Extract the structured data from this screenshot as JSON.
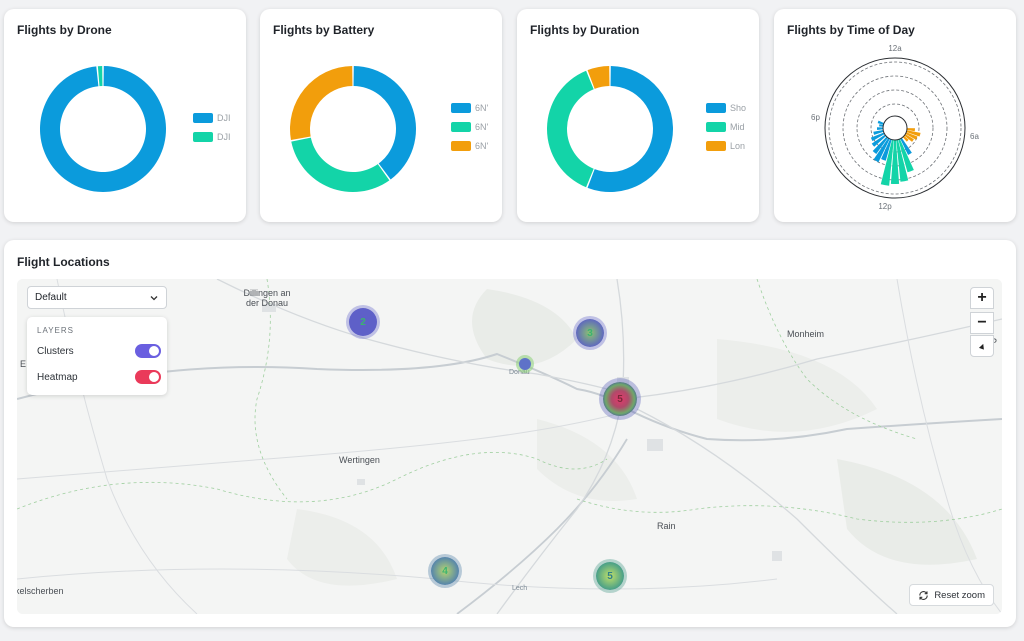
{
  "colors": {
    "blue": "#0b9bdc",
    "teal": "#13d4a8",
    "orange": "#f29e0c",
    "purple": "#6a5fe0",
    "red": "#ea3a5a"
  },
  "cards": {
    "drone": {
      "title": "Flights by Drone",
      "legend": [
        "DJI",
        "DJI"
      ]
    },
    "battery": {
      "title": "Flights by Battery",
      "legend": [
        "6N'",
        "6N'",
        "6N'"
      ]
    },
    "duration": {
      "title": "Flights by Duration",
      "legend": [
        "Sho",
        "Mid",
        "Lon"
      ]
    },
    "time": {
      "title": "Flights by Time of Day",
      "axis": {
        "top": "12a",
        "right": "6a",
        "bottom": "12p",
        "left": "6p"
      }
    }
  },
  "chart_data": [
    {
      "type": "pie",
      "title": "Flights by Drone",
      "labels": [
        "DJI",
        "DJI"
      ],
      "values": [
        98.5,
        1.5
      ],
      "donut": true
    },
    {
      "type": "pie",
      "title": "Flights by Battery",
      "labels": [
        "6N'",
        "6N'",
        "6N'"
      ],
      "values": [
        40,
        32,
        28
      ],
      "donut": true
    },
    {
      "type": "pie",
      "title": "Flights by Duration",
      "labels": [
        "Sho",
        "Mid",
        "Lon"
      ],
      "values": [
        56,
        38,
        6
      ],
      "donut": true
    },
    {
      "type": "bar",
      "title": "Flights by Time of Day",
      "polar": true,
      "axis_labels": [
        "12a",
        "6a",
        "12p",
        "6p"
      ]
    }
  ],
  "locations": {
    "title": "Flight Locations",
    "style_select": "Default",
    "layers_heading": "LAYERS",
    "layers": [
      {
        "label": "Clusters",
        "on": true
      },
      {
        "label": "Heatmap",
        "on": true
      }
    ],
    "zoom_in": "+",
    "zoom_out": "−",
    "compass": "▲",
    "reset_zoom": "Reset zoom",
    "places": {
      "dillingen": "Dillingen an der Donau",
      "monheim": "Monheim",
      "wertingen": "Wertingen",
      "rain": "Rain",
      "zusmarshausen": "kelscherben",
      "donau": "Donau",
      "lech": "Lech",
      "edge_right": "P",
      "edge_left": "E"
    },
    "clusters": [
      {
        "count": "2"
      },
      {
        "count": "3"
      },
      {
        "count": "5"
      },
      {
        "count": "4"
      },
      {
        "count": "5"
      }
    ]
  }
}
